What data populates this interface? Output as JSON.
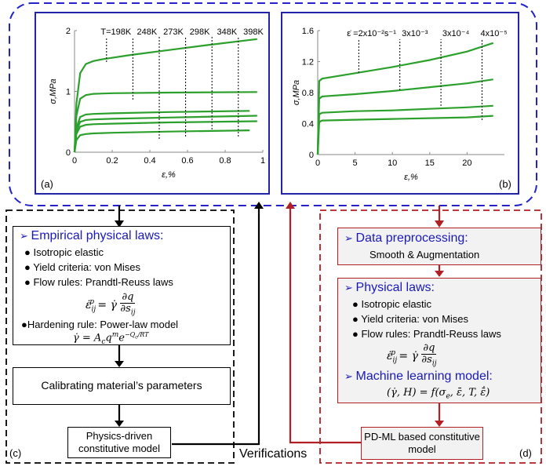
{
  "chart_data": [
    {
      "type": "line",
      "panel_label": "(a)",
      "xlabel": "ε,%",
      "ylabel": "σ,MPa",
      "xlim": [
        0,
        1.0
      ],
      "ylim": [
        0,
        2.0
      ],
      "xticks": [
        "0",
        "0.2",
        "0.4",
        "0.6",
        "0.8",
        "1"
      ],
      "yticks": [
        "0",
        "1",
        "2"
      ],
      "annotations": [
        "T=198K",
        "248K",
        "273K",
        "298K",
        "348K",
        "398K"
      ],
      "series": [
        {
          "x": [
            0,
            0.01,
            0.03,
            0.06,
            0.1,
            0.15,
            0.3,
            0.5,
            0.7,
            0.97
          ],
          "y": [
            0,
            0.8,
            1.3,
            1.45,
            1.5,
            1.53,
            1.6,
            1.68,
            1.76,
            1.86
          ]
        },
        {
          "x": [
            0,
            0.01,
            0.03,
            0.06,
            0.1,
            0.2,
            0.5,
            0.97
          ],
          "y": [
            0,
            0.6,
            0.88,
            0.94,
            0.96,
            0.97,
            0.98,
            0.99
          ]
        },
        {
          "x": [
            0,
            0.01,
            0.03,
            0.06,
            0.1,
            0.2,
            0.5,
            0.93
          ],
          "y": [
            0,
            0.4,
            0.58,
            0.62,
            0.63,
            0.64,
            0.66,
            0.68
          ]
        },
        {
          "x": [
            0,
            0.01,
            0.03,
            0.06,
            0.1,
            0.2,
            0.5,
            0.97
          ],
          "y": [
            0,
            0.35,
            0.5,
            0.53,
            0.54,
            0.55,
            0.57,
            0.6
          ]
        },
        {
          "x": [
            0,
            0.01,
            0.03,
            0.06,
            0.1,
            0.2,
            0.5,
            0.97
          ],
          "y": [
            0,
            0.3,
            0.42,
            0.45,
            0.46,
            0.47,
            0.49,
            0.51
          ]
        },
        {
          "x": [
            0,
            0.01,
            0.03,
            0.06,
            0.1,
            0.2,
            0.5,
            0.93
          ],
          "y": [
            0,
            0.2,
            0.28,
            0.3,
            0.31,
            0.32,
            0.34,
            0.36
          ]
        }
      ]
    },
    {
      "type": "line",
      "panel_label": "(b)",
      "xlabel": "ε,%",
      "ylabel": "σ,MPa",
      "xlim": [
        0,
        25
      ],
      "ylim": [
        0,
        1.6
      ],
      "xticks": [
        "0",
        "5",
        "10",
        "15",
        "20"
      ],
      "yticks": [
        "0",
        "0.4",
        "0.8",
        "1.2",
        "1.6"
      ],
      "annotations": [
        "ε̇ =2x10⁻²s⁻¹",
        "3x10⁻³",
        "3x10⁻⁴",
        "4x10⁻⁵"
      ],
      "series": [
        {
          "x": [
            0,
            0.2,
            0.6,
            5,
            10,
            15,
            20,
            23.5
          ],
          "y": [
            0,
            0.95,
            0.98,
            1.05,
            1.13,
            1.22,
            1.33,
            1.44
          ]
        },
        {
          "x": [
            0,
            0.2,
            0.6,
            5,
            10,
            15,
            20,
            23.5
          ],
          "y": [
            0,
            0.72,
            0.75,
            0.78,
            0.82,
            0.87,
            0.92,
            0.97
          ]
        },
        {
          "x": [
            0,
            0.2,
            0.6,
            5,
            10,
            15,
            20,
            23.5
          ],
          "y": [
            0,
            0.52,
            0.54,
            0.56,
            0.57,
            0.59,
            0.61,
            0.63
          ]
        },
        {
          "x": [
            0,
            0.2,
            0.6,
            5,
            10,
            15,
            20,
            23.5
          ],
          "y": [
            0,
            0.42,
            0.44,
            0.45,
            0.46,
            0.47,
            0.48,
            0.5
          ]
        }
      ]
    }
  ],
  "left_flow": {
    "empirical_title": "Empirical physical laws:",
    "item1": "Isotropic elastic",
    "item2": "Yield criteria: von Mises",
    "item3": "Flow rules: Prandtl-Reuss laws",
    "hardening": "Hardening rule: Power-law model",
    "calibrating": "Calibrating material’s parameters",
    "physics_driven": "Physics-driven constitutive model",
    "panel_label": "(c)"
  },
  "right_flow": {
    "preprocess_title": "Data preprocessing:",
    "preprocess_sub": "Smooth & Augmentation",
    "physical_title": "Physical laws:",
    "item1": "Isotropic elastic",
    "item2": "Yield criteria: von Mises",
    "item3": "Flow rules: Prandtl-Reuss laws",
    "ml_title": "Machine learning model:",
    "pdml": "PD-ML based constitutive model",
    "panel_label": "(d)"
  },
  "verifications": "Verifications",
  "colors": {
    "curve": "#2ca02c",
    "blue_frame": "#2323a8",
    "red_frame": "#b21f24",
    "dashed_blue": "#2323c8"
  }
}
